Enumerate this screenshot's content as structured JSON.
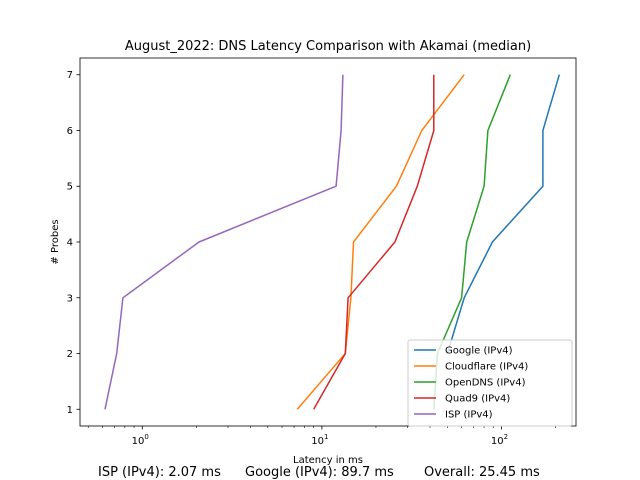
{
  "chart_data": {
    "type": "line",
    "title": "August_2022: DNS Latency Comparison with Akamai (median)",
    "xlabel": "Latency in ms",
    "ylabel": "# Probes",
    "xscale": "log",
    "xlim": [
      0.45,
      260
    ],
    "ylim": [
      0.7,
      7.3
    ],
    "xticks": [
      {
        "value": 1,
        "base": "10",
        "exp": "0"
      },
      {
        "value": 10,
        "base": "10",
        "exp": "1"
      },
      {
        "value": 100,
        "base": "10",
        "exp": "2"
      }
    ],
    "yticks": [
      1,
      2,
      3,
      4,
      5,
      6,
      7
    ],
    "grid": false,
    "legend": "lower-right",
    "series": [
      {
        "name": "Google (IPv4)",
        "color": "#1f77b4",
        "points": [
          [
            50,
            2
          ],
          [
            62,
            3
          ],
          [
            89,
            4
          ],
          [
            170,
            5
          ],
          [
            170,
            6
          ],
          [
            210,
            7
          ]
        ]
      },
      {
        "name": "Cloudflare (IPv4)",
        "color": "#ff7f0e",
        "points": [
          [
            7.3,
            1
          ],
          [
            13.5,
            2
          ],
          [
            14.5,
            3
          ],
          [
            15,
            4
          ],
          [
            26,
            5
          ],
          [
            36,
            6
          ],
          [
            62,
            7
          ]
        ]
      },
      {
        "name": "OpenDNS (IPv4)",
        "color": "#2ca02c",
        "points": [
          [
            42,
            1
          ],
          [
            44,
            2
          ],
          [
            60,
            3
          ],
          [
            64,
            4
          ],
          [
            80,
            5
          ],
          [
            84,
            6
          ],
          [
            112,
            7
          ]
        ]
      },
      {
        "name": "Quad9 (IPv4)",
        "color": "#d62728",
        "points": [
          [
            9,
            1
          ],
          [
            13.5,
            2
          ],
          [
            14,
            3
          ],
          [
            25.5,
            4
          ],
          [
            34,
            5
          ],
          [
            42,
            6
          ],
          [
            42,
            7
          ]
        ]
      },
      {
        "name": "ISP (IPv4)",
        "color": "#9467bd",
        "points": [
          [
            0.62,
            1
          ],
          [
            0.72,
            2
          ],
          [
            0.78,
            3
          ],
          [
            2.07,
            4
          ],
          [
            12,
            5
          ],
          [
            12.8,
            6
          ],
          [
            13.1,
            7
          ]
        ]
      }
    ]
  },
  "summary": {
    "isp": "ISP (IPv4): 2.07 ms",
    "google": "Google (IPv4): 89.7 ms",
    "overall": "Overall: 25.45 ms"
  }
}
